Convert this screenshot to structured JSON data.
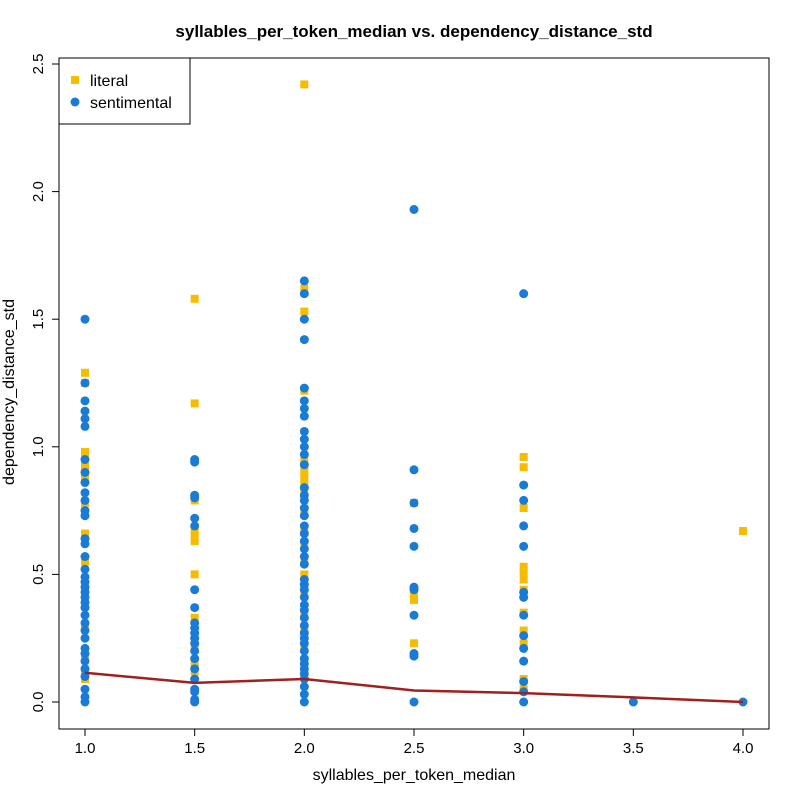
{
  "chart_data": {
    "type": "scatter",
    "title": "syllables_per_token_median vs. dependency_distance_std",
    "xlabel": "syllables_per_token_median",
    "ylabel": "dependency_distance_std",
    "xlim": [
      0.9,
      4.1
    ],
    "ylim": [
      -0.1,
      2.55
    ],
    "xticks": [
      "1.0",
      "1.5",
      "2.0",
      "2.5",
      "3.0",
      "3.5",
      "4.0"
    ],
    "yticks": [
      "0.0",
      "0.5",
      "1.0",
      "1.5",
      "2.0",
      "2.5"
    ],
    "grid": false,
    "legend_position": "top-left",
    "series": [
      {
        "name": "literal",
        "marker": "square",
        "color": "#F5BC00",
        "points": [
          [
            1.0,
            1.29
          ],
          [
            1.0,
            1.25
          ],
          [
            1.0,
            0.98
          ],
          [
            1.0,
            0.95
          ],
          [
            1.0,
            0.92
          ],
          [
            1.0,
            0.88
          ],
          [
            1.0,
            0.78
          ],
          [
            1.0,
            0.66
          ],
          [
            1.0,
            0.55
          ],
          [
            1.0,
            0.45
          ],
          [
            1.0,
            0.3
          ],
          [
            1.0,
            0.18
          ],
          [
            1.0,
            0.11
          ],
          [
            1.0,
            0.09
          ],
          [
            1.5,
            1.58
          ],
          [
            1.5,
            1.17
          ],
          [
            1.5,
            0.79
          ],
          [
            1.5,
            0.67
          ],
          [
            1.5,
            0.65
          ],
          [
            1.5,
            0.63
          ],
          [
            1.5,
            0.5
          ],
          [
            1.5,
            0.33
          ],
          [
            1.5,
            0.22
          ],
          [
            1.5,
            0.15
          ],
          [
            1.5,
            0.12
          ],
          [
            2.0,
            2.42
          ],
          [
            2.0,
            1.62
          ],
          [
            2.0,
            1.53
          ],
          [
            2.0,
            1.22
          ],
          [
            2.0,
            0.95
          ],
          [
            2.0,
            0.92
          ],
          [
            2.0,
            0.9
          ],
          [
            2.0,
            0.88
          ],
          [
            2.0,
            0.85
          ],
          [
            2.0,
            0.82
          ],
          [
            2.0,
            0.8
          ],
          [
            2.0,
            0.75
          ],
          [
            2.0,
            0.68
          ],
          [
            2.0,
            0.62
          ],
          [
            2.0,
            0.55
          ],
          [
            2.0,
            0.5
          ],
          [
            2.0,
            0.42
          ],
          [
            2.0,
            0.35
          ],
          [
            2.0,
            0.28
          ],
          [
            2.0,
            0.22
          ],
          [
            2.0,
            0.12
          ],
          [
            2.5,
            0.78
          ],
          [
            2.5,
            0.43
          ],
          [
            2.5,
            0.4
          ],
          [
            2.5,
            0.23
          ],
          [
            3.0,
            0.96
          ],
          [
            3.0,
            0.92
          ],
          [
            3.0,
            0.76
          ],
          [
            3.0,
            0.53
          ],
          [
            3.0,
            0.51
          ],
          [
            3.0,
            0.48
          ],
          [
            3.0,
            0.44
          ],
          [
            3.0,
            0.35
          ],
          [
            3.0,
            0.28
          ],
          [
            3.0,
            0.23
          ],
          [
            3.0,
            0.09
          ],
          [
            3.0,
            0.05
          ],
          [
            4.0,
            0.67
          ]
        ]
      },
      {
        "name": "sentimental",
        "marker": "circle",
        "color": "#1A7BD6",
        "points": [
          [
            1.0,
            1.5
          ],
          [
            1.0,
            1.25
          ],
          [
            1.0,
            1.18
          ],
          [
            1.0,
            1.14
          ],
          [
            1.0,
            1.11
          ],
          [
            1.0,
            1.08
          ],
          [
            1.0,
            0.95
          ],
          [
            1.0,
            0.9
          ],
          [
            1.0,
            0.86
          ],
          [
            1.0,
            0.82
          ],
          [
            1.0,
            0.79
          ],
          [
            1.0,
            0.75
          ],
          [
            1.0,
            0.73
          ],
          [
            1.0,
            0.64
          ],
          [
            1.0,
            0.62
          ],
          [
            1.0,
            0.57
          ],
          [
            1.0,
            0.52
          ],
          [
            1.0,
            0.49
          ],
          [
            1.0,
            0.47
          ],
          [
            1.0,
            0.45
          ],
          [
            1.0,
            0.43
          ],
          [
            1.0,
            0.41
          ],
          [
            1.0,
            0.39
          ],
          [
            1.0,
            0.37
          ],
          [
            1.0,
            0.34
          ],
          [
            1.0,
            0.31
          ],
          [
            1.0,
            0.28
          ],
          [
            1.0,
            0.25
          ],
          [
            1.0,
            0.21
          ],
          [
            1.0,
            0.19
          ],
          [
            1.0,
            0.16
          ],
          [
            1.0,
            0.13
          ],
          [
            1.0,
            0.1
          ],
          [
            1.0,
            0.05
          ],
          [
            1.0,
            0.02
          ],
          [
            1.0,
            0.0
          ],
          [
            1.5,
            0.95
          ],
          [
            1.5,
            0.94
          ],
          [
            1.5,
            0.81
          ],
          [
            1.5,
            0.8
          ],
          [
            1.5,
            0.72
          ],
          [
            1.5,
            0.69
          ],
          [
            1.5,
            0.44
          ],
          [
            1.5,
            0.37
          ],
          [
            1.5,
            0.31
          ],
          [
            1.5,
            0.29
          ],
          [
            1.5,
            0.27
          ],
          [
            1.5,
            0.25
          ],
          [
            1.5,
            0.23
          ],
          [
            1.5,
            0.2
          ],
          [
            1.5,
            0.17
          ],
          [
            1.5,
            0.13
          ],
          [
            1.5,
            0.09
          ],
          [
            1.5,
            0.05
          ],
          [
            1.5,
            0.04
          ],
          [
            1.5,
            0.01
          ],
          [
            1.5,
            0.0
          ],
          [
            2.0,
            1.65
          ],
          [
            2.0,
            1.6
          ],
          [
            2.0,
            1.5
          ],
          [
            2.0,
            1.42
          ],
          [
            2.0,
            1.23
          ],
          [
            2.0,
            1.18
          ],
          [
            2.0,
            1.15
          ],
          [
            2.0,
            1.12
          ],
          [
            2.0,
            1.06
          ],
          [
            2.0,
            1.03
          ],
          [
            2.0,
            1.0
          ],
          [
            2.0,
            0.97
          ],
          [
            2.0,
            0.93
          ],
          [
            2.0,
            0.84
          ],
          [
            2.0,
            0.81
          ],
          [
            2.0,
            0.79
          ],
          [
            2.0,
            0.76
          ],
          [
            2.0,
            0.73
          ],
          [
            2.0,
            0.69
          ],
          [
            2.0,
            0.66
          ],
          [
            2.0,
            0.63
          ],
          [
            2.0,
            0.6
          ],
          [
            2.0,
            0.57
          ],
          [
            2.0,
            0.54
          ],
          [
            2.0,
            0.48
          ],
          [
            2.0,
            0.46
          ],
          [
            2.0,
            0.44
          ],
          [
            2.0,
            0.41
          ],
          [
            2.0,
            0.38
          ],
          [
            2.0,
            0.36
          ],
          [
            2.0,
            0.33
          ],
          [
            2.0,
            0.3
          ],
          [
            2.0,
            0.27
          ],
          [
            2.0,
            0.25
          ],
          [
            2.0,
            0.23
          ],
          [
            2.0,
            0.2
          ],
          [
            2.0,
            0.17
          ],
          [
            2.0,
            0.15
          ],
          [
            2.0,
            0.13
          ],
          [
            2.0,
            0.11
          ],
          [
            2.0,
            0.09
          ],
          [
            2.0,
            0.06
          ],
          [
            2.0,
            0.03
          ],
          [
            2.0,
            0.0
          ],
          [
            2.5,
            1.93
          ],
          [
            2.5,
            0.91
          ],
          [
            2.5,
            0.78
          ],
          [
            2.5,
            0.68
          ],
          [
            2.5,
            0.61
          ],
          [
            2.5,
            0.45
          ],
          [
            2.5,
            0.44
          ],
          [
            2.5,
            0.34
          ],
          [
            2.5,
            0.19
          ],
          [
            2.5,
            0.18
          ],
          [
            2.5,
            0.0
          ],
          [
            3.0,
            1.6
          ],
          [
            3.0,
            0.85
          ],
          [
            3.0,
            0.79
          ],
          [
            3.0,
            0.69
          ],
          [
            3.0,
            0.61
          ],
          [
            3.0,
            0.43
          ],
          [
            3.0,
            0.41
          ],
          [
            3.0,
            0.34
          ],
          [
            3.0,
            0.26
          ],
          [
            3.0,
            0.21
          ],
          [
            3.0,
            0.16
          ],
          [
            3.0,
            0.08
          ],
          [
            3.0,
            0.04
          ],
          [
            3.0,
            0.0
          ],
          [
            3.5,
            0.0
          ],
          [
            4.0,
            0.0
          ]
        ]
      },
      {
        "name": "",
        "type": "line",
        "color": "#A02020",
        "points": [
          [
            1.0,
            0.115
          ],
          [
            1.5,
            0.075
          ],
          [
            2.0,
            0.09
          ],
          [
            2.5,
            0.045
          ],
          [
            3.0,
            0.035
          ],
          [
            3.5,
            0.018
          ],
          [
            4.0,
            0.0
          ]
        ]
      }
    ]
  }
}
